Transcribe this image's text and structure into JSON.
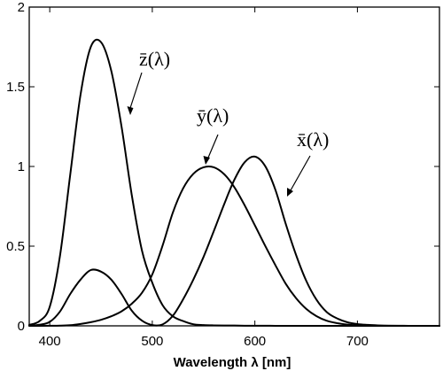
{
  "chart_data": {
    "type": "line",
    "title": "",
    "xlabel": "Wavelength λ  [nm]",
    "ylabel": "",
    "xlim": [
      380,
      780
    ],
    "ylim": [
      0,
      2
    ],
    "grid": false,
    "x_ticks": [
      400,
      500,
      600,
      700
    ],
    "y_ticks": [
      0,
      0.5,
      1,
      1.5,
      2
    ],
    "x_tick_labels": [
      "400",
      "500",
      "600",
      "700"
    ],
    "y_tick_labels": [
      "0",
      "0.5",
      "1",
      "1.5",
      "2"
    ],
    "x": [
      380,
      390,
      400,
      410,
      420,
      430,
      440,
      450,
      460,
      470,
      480,
      490,
      500,
      510,
      520,
      530,
      540,
      550,
      560,
      570,
      580,
      590,
      600,
      610,
      620,
      630,
      640,
      650,
      660,
      670,
      680,
      690,
      700,
      710,
      720,
      730,
      740,
      750,
      760,
      770,
      780
    ],
    "series": [
      {
        "name": "x̄(λ)",
        "values": [
          0.002,
          0.007,
          0.025,
          0.09,
          0.2,
          0.29,
          0.35,
          0.34,
          0.29,
          0.2,
          0.095,
          0.032,
          0.005,
          0.009,
          0.063,
          0.166,
          0.29,
          0.433,
          0.595,
          0.762,
          0.916,
          1.026,
          1.062,
          1.003,
          0.854,
          0.642,
          0.448,
          0.284,
          0.165,
          0.087,
          0.047,
          0.023,
          0.011,
          0.006,
          0.003,
          0.001,
          0.0006,
          0.0003,
          0.0002,
          0.0001,
          0.0
        ]
      },
      {
        "name": "ȳ(λ)",
        "values": [
          0.0,
          0.0001,
          0.0004,
          0.0012,
          0.004,
          0.012,
          0.023,
          0.038,
          0.06,
          0.091,
          0.139,
          0.208,
          0.323,
          0.503,
          0.71,
          0.862,
          0.954,
          0.995,
          0.995,
          0.952,
          0.87,
          0.757,
          0.631,
          0.503,
          0.381,
          0.265,
          0.175,
          0.107,
          0.061,
          0.032,
          0.017,
          0.008,
          0.004,
          0.002,
          0.001,
          0.0005,
          0.0003,
          0.0001,
          0.0001,
          0.0,
          0.0
        ]
      },
      {
        "name": "z̄(λ)",
        "values": [
          0.006,
          0.03,
          0.12,
          0.44,
          0.95,
          1.45,
          1.75,
          1.78,
          1.6,
          1.25,
          0.82,
          0.47,
          0.27,
          0.13,
          0.06,
          0.03,
          0.01,
          0.005,
          0.003,
          0.002,
          0.002,
          0.001,
          0.001,
          0.0008,
          0.0002,
          0.0,
          0.0,
          0.0,
          0.0,
          0.0,
          0.0,
          0.0,
          0.0,
          0.0,
          0.0,
          0.0,
          0.0,
          0.0,
          0.0,
          0.0,
          0.0
        ]
      }
    ],
    "annotations": [
      {
        "text": "z̄(λ)",
        "series": "z̄(λ)"
      },
      {
        "text": "ȳ(λ)",
        "series": "ȳ(λ)"
      },
      {
        "text": "x̄(λ)",
        "series": "x̄(λ)"
      }
    ]
  }
}
